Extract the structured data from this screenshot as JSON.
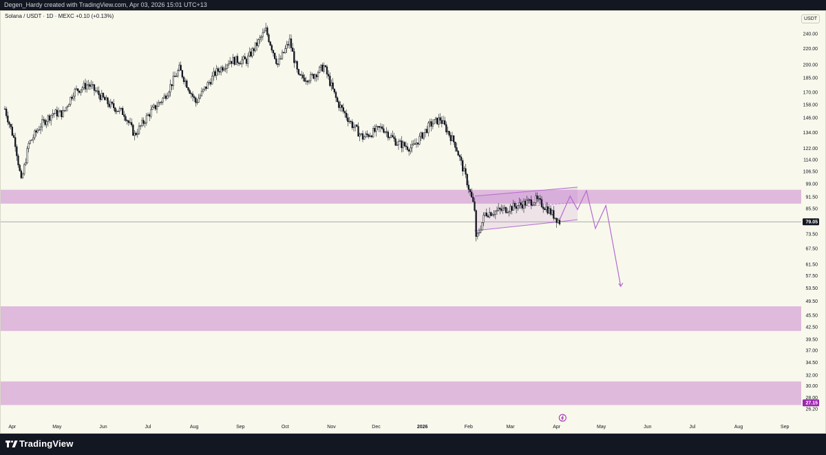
{
  "header": {
    "attribution": "Degen_Hardy created with TradingView.com, Apr 03, 2026 15:01 UTC+13"
  },
  "legend": {
    "symbol_line": "Solana / USDT · 1D · MEXC  +0.10 (+0.13%)"
  },
  "price_scale": {
    "currency": "USDT"
  },
  "footer": {
    "brand": "TradingView"
  },
  "colors": {
    "background": "#f8f8ec",
    "zone": "#dcb3da",
    "projection": "#b36ad0",
    "price_tag": "#131722",
    "low_tag": "#9c27b0",
    "candle": "#131722"
  },
  "chart_data": {
    "type": "candlestick",
    "symbol": "Solana / USDT",
    "interval": "1D",
    "exchange": "MEXC",
    "change": "+0.10 (+0.13%)",
    "scale": "log",
    "grid": false,
    "ylim": [
      26.2,
      255
    ],
    "y_ticks": [
      "240.00",
      "220.00",
      "200.00",
      "185.00",
      "170.00",
      "158.00",
      "146.00",
      "134.00",
      "122.00",
      "114.00",
      "106.50",
      "99.00",
      "91.50",
      "85.50",
      "79.05",
      "73.50",
      "67.50",
      "61.50",
      "57.50",
      "53.50",
      "49.50",
      "45.50",
      "42.50",
      "39.50",
      "37.00",
      "34.50",
      "32.00",
      "30.00",
      "28.00",
      "27.15",
      "26.20"
    ],
    "x_ticks": [
      "Apr",
      "May",
      "Jun",
      "Jul",
      "Aug",
      "Sep",
      "Oct",
      "Nov",
      "Dec",
      "2026",
      "Feb",
      "Mar",
      "Apr",
      "May",
      "Jun",
      "Jul",
      "Aug",
      "Sep"
    ],
    "last_price": "79.05",
    "low_marker": "27.15",
    "zones": [
      {
        "from": 88.0,
        "to": 95.5
      },
      {
        "from": 41.5,
        "to": 48.0
      },
      {
        "from": 26.8,
        "to": 30.8
      }
    ],
    "trend_path": [
      [
        "2025-03-27",
        154
      ],
      [
        "2025-04-03",
        126
      ],
      [
        "2025-04-07",
        100
      ],
      [
        "2025-04-12",
        125
      ],
      [
        "2025-04-20",
        140
      ],
      [
        "2025-04-28",
        150
      ],
      [
        "2025-05-05",
        150
      ],
      [
        "2025-05-12",
        170
      ],
      [
        "2025-05-22",
        178
      ],
      [
        "2025-06-05",
        158
      ],
      [
        "2025-06-15",
        150
      ],
      [
        "2025-06-22",
        132
      ],
      [
        "2025-07-02",
        150
      ],
      [
        "2025-07-12",
        165
      ],
      [
        "2025-07-22",
        195
      ],
      [
        "2025-08-02",
        160
      ],
      [
        "2025-08-15",
        190
      ],
      [
        "2025-08-25",
        205
      ],
      [
        "2025-09-05",
        205
      ],
      [
        "2025-09-18",
        245
      ],
      [
        "2025-09-26",
        200
      ],
      [
        "2025-10-04",
        230
      ],
      [
        "2025-10-10",
        185
      ],
      [
        "2025-10-18",
        185
      ],
      [
        "2025-10-27",
        198
      ],
      [
        "2025-11-05",
        160
      ],
      [
        "2025-11-15",
        140
      ],
      [
        "2025-11-22",
        130
      ],
      [
        "2025-12-05",
        138
      ],
      [
        "2025-12-15",
        126
      ],
      [
        "2025-12-25",
        122
      ],
      [
        "2026-01-06",
        140
      ],
      [
        "2026-01-13",
        145
      ],
      [
        "2026-01-23",
        125
      ],
      [
        "2026-01-31",
        100
      ],
      [
        "2026-02-05",
        85
      ],
      [
        "2026-02-06",
        71
      ],
      [
        "2026-02-12",
        83
      ],
      [
        "2026-02-25",
        85
      ],
      [
        "2026-03-10",
        88
      ],
      [
        "2026-03-18",
        90
      ],
      [
        "2026-03-25",
        86
      ],
      [
        "2026-04-03",
        79
      ]
    ],
    "projection": [
      [
        "2026-04-03",
        80
      ],
      [
        "2026-04-10",
        92
      ],
      [
        "2026-04-15",
        85
      ],
      [
        "2026-04-21",
        95
      ],
      [
        "2026-04-27",
        76
      ],
      [
        "2026-05-04",
        87
      ],
      [
        "2026-05-14",
        54
      ]
    ],
    "channel": {
      "upper": [
        [
          "2026-02-05",
          92
        ],
        [
          "2026-04-15",
          97
        ]
      ],
      "lower": [
        [
          "2026-02-05",
          75
        ],
        [
          "2026-04-15",
          80
        ]
      ]
    }
  }
}
